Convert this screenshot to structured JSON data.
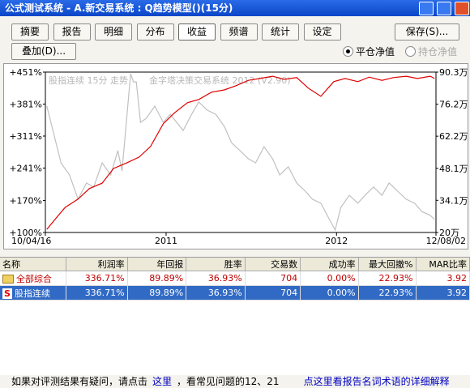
{
  "window": {
    "title": "公式测试系统 - A.新交易系统 : Q趋势模型()(15分)"
  },
  "toolbar": {
    "tabs": [
      {
        "label": "摘要"
      },
      {
        "label": "报告"
      },
      {
        "label": "明细"
      },
      {
        "label": "分布"
      },
      {
        "label": "收益",
        "active": true
      },
      {
        "label": "频谱"
      },
      {
        "label": "统计"
      },
      {
        "label": "设定"
      }
    ],
    "save": "保存(S)...",
    "overlay": "叠加(D)...",
    "radios": [
      {
        "label": "平仓净值",
        "checked": true,
        "enabled": true
      },
      {
        "label": "持仓净值",
        "checked": false,
        "enabled": false
      }
    ]
  },
  "chart": {
    "type": "line",
    "annotations": [
      "股指连续 15分 走势",
      "金字塔决策交易系统 2012 (V2.90)"
    ],
    "xlim": [
      0,
      27.5
    ],
    "xticks": [
      {
        "value": 0,
        "label": "10/04/16"
      },
      {
        "value": 8.5,
        "label": "2011"
      },
      {
        "value": 20.5,
        "label": "2012"
      },
      {
        "value": 27.5,
        "label": "12/08/02"
      }
    ],
    "ylim": [
      100,
      451
    ],
    "yticks": [
      {
        "value": 451,
        "label": "+451%"
      },
      {
        "value": 381,
        "label": "+381%"
      },
      {
        "value": 311,
        "label": "+311%"
      },
      {
        "value": 241,
        "label": "+241%"
      },
      {
        "value": 170,
        "label": "+170%"
      },
      {
        "value": 100,
        "label": "+100%"
      }
    ],
    "y2lim": [
      20,
      90.3
    ],
    "y2ticks": [
      {
        "value": 90.3,
        "label": "90.3万"
      },
      {
        "value": 76.2,
        "label": "76.2万"
      },
      {
        "value": 62.2,
        "label": "62.2万"
      },
      {
        "value": 48.1,
        "label": "48.1万"
      },
      {
        "value": 34.1,
        "label": "34.1万"
      },
      {
        "value": 20,
        "label": "20万"
      }
    ],
    "series": [
      {
        "color": "#c0c0c0",
        "axis": "y2",
        "x": [
          0.1,
          0.6,
          1.1,
          1.7,
          2.3,
          2.9,
          3.4,
          4.0,
          4.6,
          5.1,
          5.4,
          5.7,
          6.0,
          6.2,
          6.4,
          6.7,
          7.1,
          7.7,
          8.3,
          8.8,
          9.7,
          10.3,
          10.8,
          11.4,
          12.0,
          12.6,
          13.1,
          13.7,
          14.3,
          14.8,
          15.4,
          16.0,
          16.5,
          17.1,
          17.7,
          18.3,
          18.8,
          19.4,
          20.0,
          20.4,
          20.8,
          21.4,
          22.0,
          22.5,
          23.1,
          23.7,
          24.2,
          24.8,
          25.4,
          26.0,
          26.5,
          27.1,
          27.4
        ],
        "values": [
          75.4,
          63,
          50.5,
          45.2,
          34.6,
          41.7,
          39.9,
          50.5,
          45.2,
          55.9,
          47,
          68.3,
          89.6,
          86,
          86,
          68.3,
          70,
          75.4,
          68.3,
          71.8,
          64.7,
          71.8,
          77.2,
          73.6,
          71.8,
          66.5,
          59.4,
          55.9,
          52.3,
          50.5,
          57.6,
          52.3,
          45.2,
          48.8,
          41.7,
          38.1,
          34.6,
          32.8,
          25.7,
          21.1,
          31,
          36.3,
          32.8,
          36.3,
          39.9,
          36.3,
          41.7,
          38.1,
          34.6,
          32.8,
          29.2,
          27.5,
          25.7
        ]
      },
      {
        "color": "#e00000",
        "axis": "y",
        "x": [
          0.1,
          0.9,
          1.4,
          2.3,
          3.1,
          4.0,
          4.8,
          5.7,
          6.6,
          7.4,
          8.3,
          9.1,
          10.0,
          10.8,
          11.7,
          12.6,
          13.4,
          14.3,
          15.1,
          16.0,
          16.8,
          17.7,
          18.5,
          19.4,
          20.3,
          21.1,
          22.0,
          22.8,
          23.7,
          24.5,
          25.4,
          26.2,
          27.1,
          27.4
        ],
        "values": [
          107,
          137,
          155,
          173,
          196,
          208,
          240,
          252,
          265,
          288,
          338,
          362,
          384,
          391,
          407,
          412,
          421,
          433,
          437,
          442,
          435,
          439,
          416,
          398,
          430,
          437,
          430,
          440,
          433,
          439,
          442,
          437,
          442,
          437
        ]
      }
    ]
  },
  "table": {
    "columns": [
      "名称",
      "利润率",
      "年回报",
      "胜率",
      "交易数",
      "成功率",
      "最大回撤%",
      "MAR比率"
    ],
    "rows": [
      [
        "全部综合",
        "336.71%",
        "89.89%",
        "36.93%",
        "704",
        "0.00%",
        "22.93%",
        "3.92"
      ],
      [
        "股指连续",
        "336.71%",
        "89.89%",
        "36.93%",
        "704",
        "0.00%",
        "22.93%",
        "3.92"
      ]
    ]
  },
  "footer": {
    "parts": [
      "如果对评测结果有疑问，请点击",
      "这里",
      "，看常见问题的12、21",
      "点这里看报告名词术语的详细解释"
    ]
  }
}
